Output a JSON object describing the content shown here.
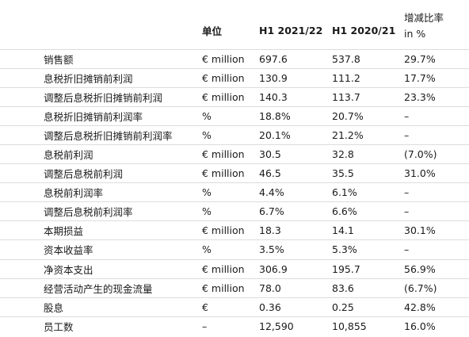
{
  "header": {
    "metric": "",
    "unit": "单位",
    "current": "H1 2021/22",
    "prior": "H1 2020/21",
    "change_line1": "增减比率",
    "change_line2": "in %"
  },
  "rows": [
    {
      "label": "销售额",
      "unit": "€ million",
      "current": "697.6",
      "prior": "537.8",
      "change": "29.7%"
    },
    {
      "label": "息税折旧摊销前利润",
      "unit": "€ million",
      "current": "130.9",
      "prior": "111.2",
      "change": "17.7%"
    },
    {
      "label": "调整后息税折旧摊销前利润",
      "unit": "€ million",
      "current": "140.3",
      "prior": "113.7",
      "change": "23.3%"
    },
    {
      "label": "息税折旧摊销前利润率",
      "unit": "%",
      "current": "18.8%",
      "prior": "20.7%",
      "change": "–"
    },
    {
      "label": "调整后息税折旧摊销前利润率",
      "unit": "%",
      "current": "20.1%",
      "prior": "21.2%",
      "change": "–"
    },
    {
      "label": "息税前利润",
      "unit": "€ million",
      "current": "30.5",
      "prior": "32.8",
      "change": "(7.0%)"
    },
    {
      "label": "调整后息税前利润",
      "unit": "€ million",
      "current": "46.5",
      "prior": "35.5",
      "change": "31.0%"
    },
    {
      "label": "息税前利润率",
      "unit": "%",
      "current": "4.4%",
      "prior": "6.1%",
      "change": "–"
    },
    {
      "label": "调整后息税前利润率",
      "unit": "%",
      "current": "6.7%",
      "prior": "6.6%",
      "change": "–"
    },
    {
      "label": "本期损益",
      "unit": "€ million",
      "current": "18.3",
      "prior": "14.1",
      "change": "30.1%"
    },
    {
      "label": "资本收益率",
      "unit": "%",
      "current": "3.5%",
      "prior": "5.3%",
      "change": "–"
    },
    {
      "label": "净资本支出",
      "unit": "€ million",
      "current": "306.9",
      "prior": "195.7",
      "change": "56.9%"
    },
    {
      "label": "经营活动产生的现金流量",
      "unit": "€ million",
      "current": "78.0",
      "prior": "83.6",
      "change": "(6.7%)"
    },
    {
      "label": "股息",
      "unit": "€",
      "current": "0.36",
      "prior": "0.25",
      "change": "42.8%"
    },
    {
      "label": "员工数",
      "unit": "–",
      "current": "12,590",
      "prior": "10,855",
      "change": "16.0%"
    }
  ]
}
